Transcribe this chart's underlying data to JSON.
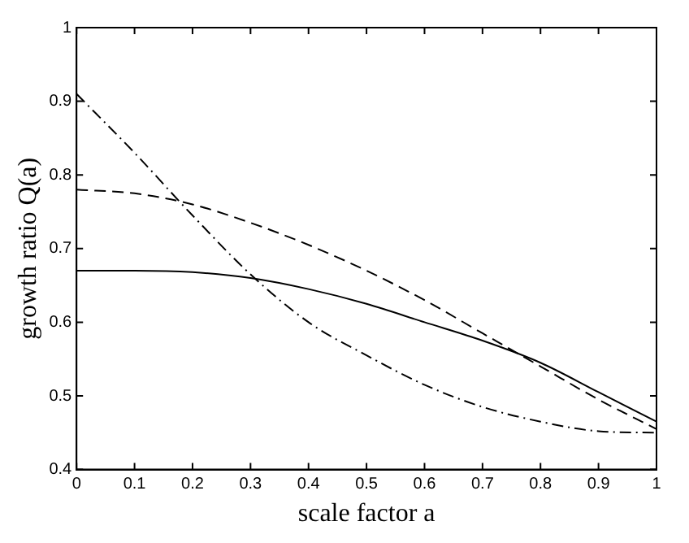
{
  "chart_data": {
    "type": "line",
    "xlabel": "scale factor a",
    "ylabel": "growth ratio Q(a)",
    "x": [
      0,
      0.1,
      0.2,
      0.3,
      0.4,
      0.5,
      0.6,
      0.7,
      0.8,
      0.9,
      1
    ],
    "series": [
      {
        "color": "#000000",
        "line_style": "solid",
        "values": [
          0.67,
          0.67,
          0.668,
          0.66,
          0.645,
          0.625,
          0.6,
          0.575,
          0.545,
          0.505,
          0.465
        ]
      },
      {
        "color": "#000000",
        "line_style": "dashed",
        "values": [
          0.78,
          0.775,
          0.76,
          0.735,
          0.705,
          0.67,
          0.63,
          0.585,
          0.54,
          0.495,
          0.455
        ]
      },
      {
        "color": "#000000",
        "line_style": "dashdot",
        "values": [
          0.91,
          0.83,
          0.745,
          0.665,
          0.6,
          0.555,
          0.515,
          0.485,
          0.465,
          0.452,
          0.45
        ]
      }
    ],
    "xlim": [
      0,
      1
    ],
    "xticks": [
      0,
      0.1,
      0.2,
      0.3,
      0.4,
      0.5,
      0.6,
      0.7,
      0.8,
      0.9,
      1
    ],
    "ylim": [
      0.4,
      1
    ],
    "yticks": [
      0.4,
      0.5,
      0.6,
      0.7,
      0.8,
      0.9,
      1
    ],
    "grid": false,
    "legend": false,
    "marker": "none"
  }
}
